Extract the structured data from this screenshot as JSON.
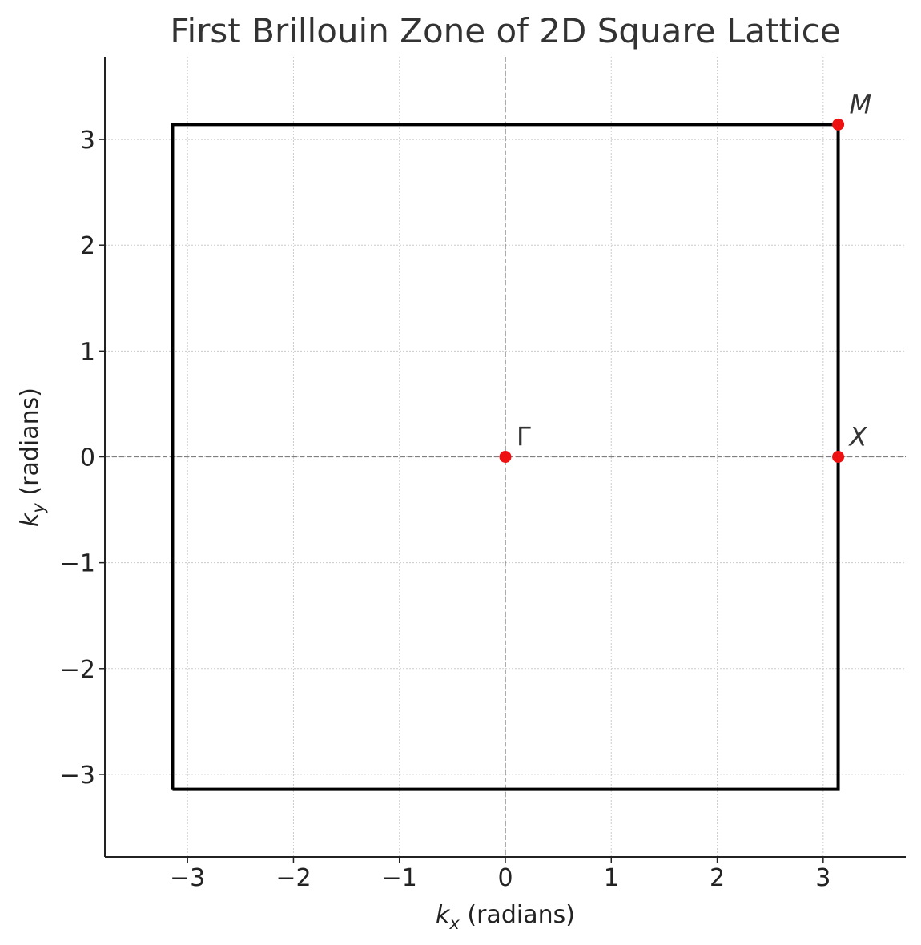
{
  "chart_data": {
    "type": "scatter",
    "title": "First Brillouin Zone of 2D Square Lattice",
    "xlabel": {
      "var": "k",
      "sub": "x",
      "rest": " (radians)"
    },
    "ylabel": {
      "var": "k",
      "sub": "y",
      "rest": " (radians)"
    },
    "xlim": [
      -3.78,
      3.78
    ],
    "ylim": [
      -3.78,
      3.78
    ],
    "grid": true,
    "xticks": [
      -3,
      -2,
      -1,
      0,
      1,
      2,
      3
    ],
    "yticks": [
      -3,
      -2,
      -1,
      0,
      1,
      2,
      3
    ],
    "xtick_labels": [
      "−3",
      "−2",
      "−1",
      "0",
      "1",
      "2",
      "3"
    ],
    "ytick_labels": [
      "−3",
      "−2",
      "−1",
      "0",
      "1",
      "2",
      "3"
    ],
    "zone_boundary": {
      "x": [
        -3.1416,
        3.1416,
        3.1416,
        -3.1416,
        -3.1416
      ],
      "y": [
        -3.1416,
        -3.1416,
        3.1416,
        3.1416,
        -3.1416
      ],
      "color": "#000000"
    },
    "reference_lines": {
      "x0": 0,
      "y0": 0,
      "color": "#808080"
    },
    "points": [
      {
        "label": "Γ",
        "italic": false,
        "x": 0,
        "y": 0
      },
      {
        "label": "X",
        "italic": true,
        "x": 3.1416,
        "y": 0
      },
      {
        "label": "M",
        "italic": true,
        "x": 3.1416,
        "y": 3.1416
      }
    ],
    "point_color": "#ee1111"
  }
}
